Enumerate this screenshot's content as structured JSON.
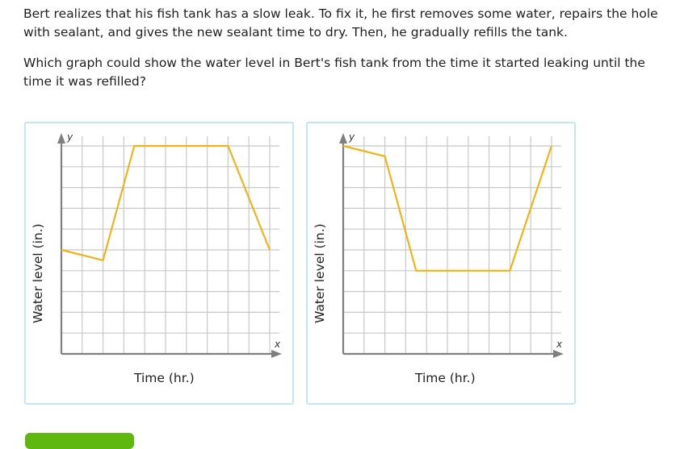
{
  "question": {
    "paragraph1": "Bert realizes that his fish tank has a slow leak. To fix it, he first removes some water, repairs the hole with sealant, and gives the new sealant time to dry. Then, he gradually refills the tank.",
    "paragraph2": "Which graph could show the water level in Bert's fish tank from the time it started leaking until the time it was refilled?"
  },
  "options": [
    {
      "ylabel": "Water level (in.)",
      "xlabel": "Time (hr.)",
      "x_axis": "x",
      "y_axis": "y"
    },
    {
      "ylabel": "Water level (in.)",
      "xlabel": "Time (hr.)",
      "x_axis": "x",
      "y_axis": "y"
    }
  ],
  "colors": {
    "line": "#f0b41a",
    "grid": "#c8c8c8",
    "axis": "#7f7f7f",
    "card_border": "#c2e6f2",
    "button": "#5fb80f"
  },
  "chart_data": [
    {
      "type": "line",
      "title": "",
      "xlabel": "Time (hr.)",
      "ylabel": "Water level (in.)",
      "x": [
        0,
        2,
        3.5,
        8,
        10
      ],
      "values": [
        5,
        4.5,
        10,
        10,
        5
      ],
      "xlim": [
        0,
        10
      ],
      "ylim": [
        0,
        10
      ],
      "grid": true,
      "tick_labels": false
    },
    {
      "type": "line",
      "title": "",
      "xlabel": "Time (hr.)",
      "ylabel": "Water level (in.)",
      "x": [
        0,
        2,
        3.5,
        8,
        10
      ],
      "values": [
        10,
        9.5,
        4,
        4,
        10
      ],
      "xlim": [
        0,
        10
      ],
      "ylim": [
        0,
        10
      ],
      "grid": true,
      "tick_labels": false
    }
  ]
}
